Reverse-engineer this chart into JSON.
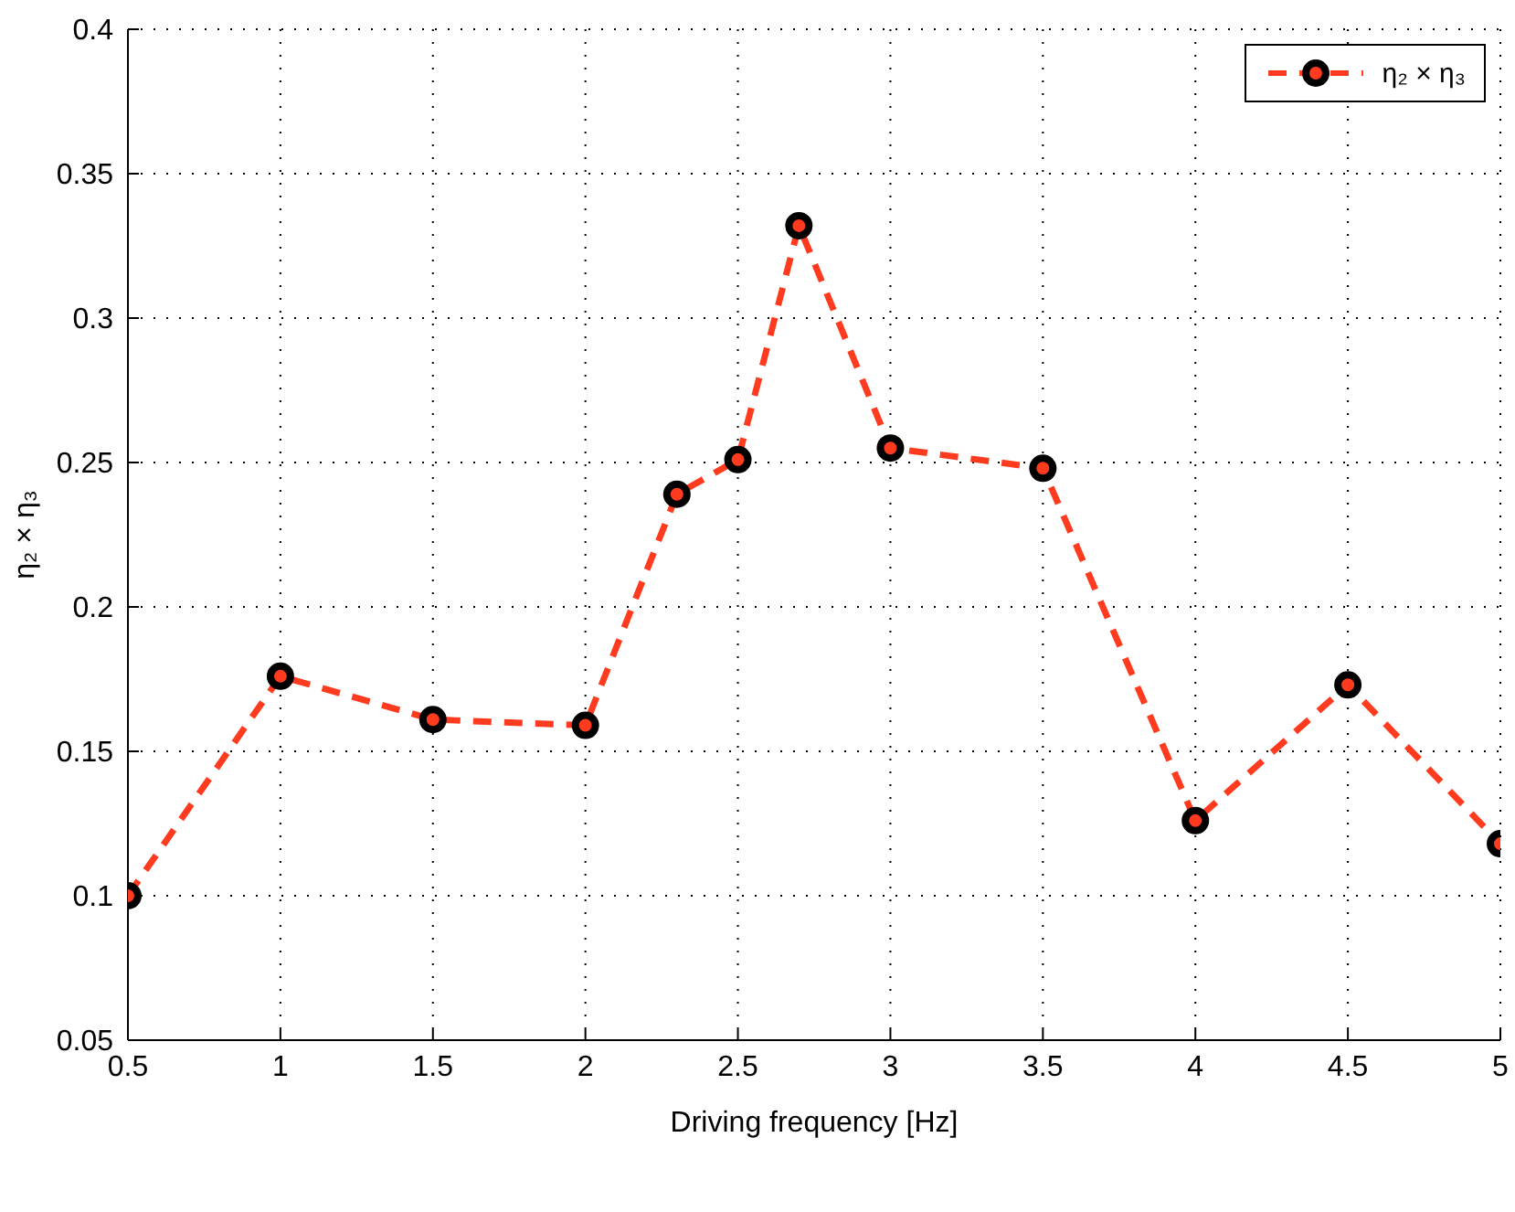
{
  "chart_data": {
    "type": "line",
    "xlabel": "Driving frequency [Hz]",
    "ylabel": "η₂ × η₃",
    "x": [
      0.5,
      1,
      1.5,
      2,
      2.3,
      2.5,
      2.7,
      3,
      3.5,
      4,
      4.5,
      5
    ],
    "series": [
      {
        "name": "η₂ × η₃",
        "color": "#ff3b1f",
        "values": [
          0.1,
          0.176,
          0.161,
          0.159,
          0.239,
          0.251,
          0.332,
          0.255,
          0.248,
          0.126,
          0.173,
          0.118
        ]
      }
    ],
    "xlim": [
      0.5,
      5
    ],
    "xticks": [
      0.5,
      1,
      1.5,
      2,
      2.5,
      3,
      3.5,
      4,
      4.5,
      5
    ],
    "ylim": [
      0.05,
      0.4
    ],
    "yticks": [
      0.05,
      0.1,
      0.15,
      0.2,
      0.25,
      0.3,
      0.35,
      0.4
    ],
    "grid": true,
    "legend": "top right",
    "marker": "circle",
    "line_style": "dashed"
  }
}
